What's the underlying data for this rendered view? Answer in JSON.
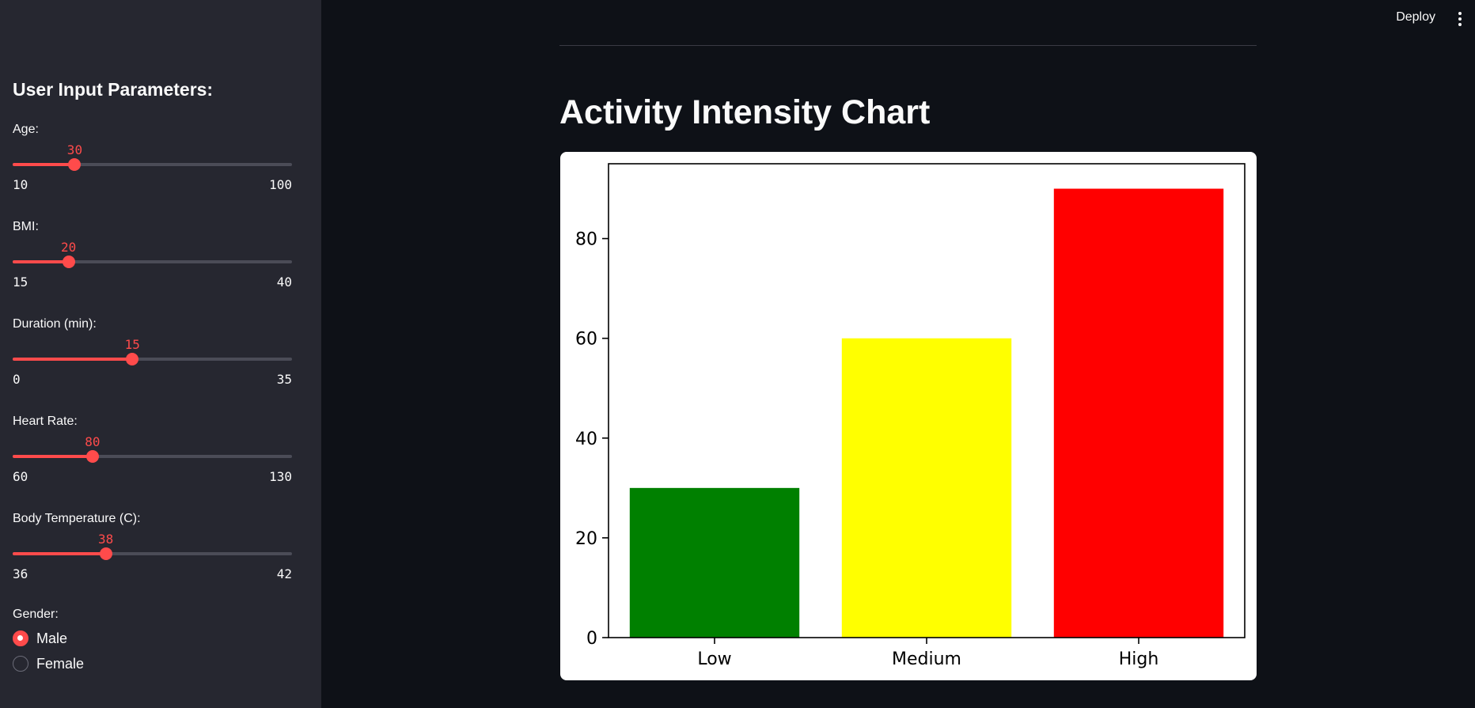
{
  "header": {
    "deploy_label": "Deploy",
    "menu_icon": "kebab-menu-icon"
  },
  "sidebar": {
    "title": "User Input Parameters:",
    "sliders": [
      {
        "label": "Age:",
        "value": "30",
        "min": "10",
        "max": "100"
      },
      {
        "label": "BMI:",
        "value": "20",
        "min": "15",
        "max": "40"
      },
      {
        "label": "Duration (min):",
        "value": "15",
        "min": "0",
        "max": "35"
      },
      {
        "label": "Heart Rate:",
        "value": "80",
        "min": "60",
        "max": "130"
      },
      {
        "label": "Body Temperature (C):",
        "value": "38",
        "min": "36",
        "max": "42"
      }
    ],
    "gender": {
      "label": "Gender:",
      "options": [
        "Male",
        "Female"
      ],
      "selected": "Male"
    }
  },
  "main": {
    "title": "Activity Intensity Chart"
  },
  "colors": {
    "accent": "#ff4b4b",
    "background": "#0e1117",
    "sidebar": "#262730"
  },
  "chart_data": {
    "type": "bar",
    "categories": [
      "Low",
      "Medium",
      "High"
    ],
    "values": [
      30,
      60,
      90
    ],
    "colors": [
      "#008000",
      "#ffff00",
      "#ff0000"
    ],
    "title": "",
    "xlabel": "",
    "ylabel": "",
    "ylim": [
      0,
      95
    ],
    "yticks": [
      0,
      20,
      40,
      60,
      80
    ],
    "grid": false
  }
}
